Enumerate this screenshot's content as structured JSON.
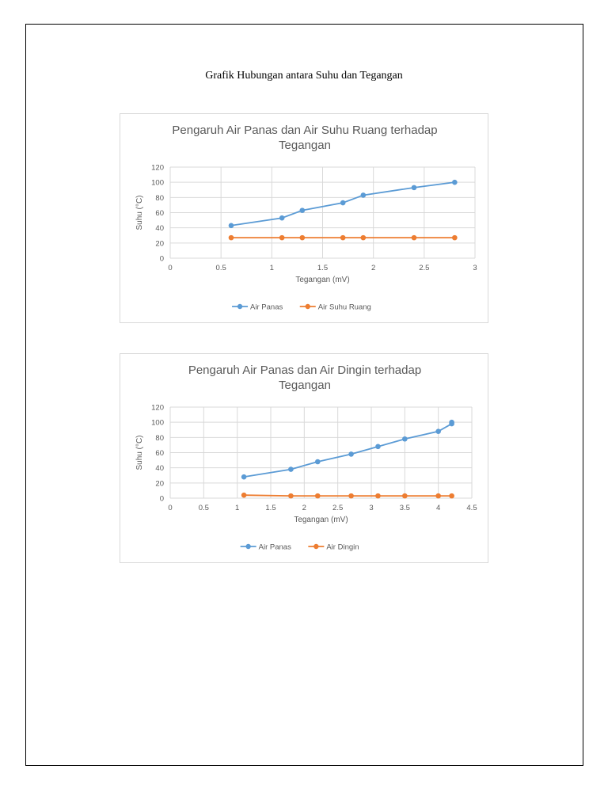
{
  "document": {
    "heading": "Grafik Hubungan antara Suhu dan Tegangan"
  },
  "chart_data": [
    {
      "type": "line",
      "title_lines": [
        "Pengaruh Air Panas dan Air Suhu Ruang terhadap",
        "Tegangan"
      ],
      "xlabel": "Tegangan (mV)",
      "ylabel": "Suhu (°C)",
      "xlim": [
        0,
        3
      ],
      "ylim": [
        0,
        120
      ],
      "x_ticks": [
        0,
        0.5,
        1,
        1.5,
        2,
        2.5,
        3
      ],
      "y_ticks": [
        0,
        20,
        40,
        60,
        80,
        100,
        120
      ],
      "grid": true,
      "legend_position": "bottom",
      "series": [
        {
          "name": "Air Panas",
          "color": "#5b9bd5",
          "x": [
            0.6,
            1.1,
            1.3,
            1.7,
            1.9,
            2.4,
            2.8
          ],
          "y": [
            43,
            53,
            63,
            73,
            83,
            93,
            100
          ]
        },
        {
          "name": "Air Suhu Ruang",
          "color": "#ed7d31",
          "x": [
            0.6,
            1.1,
            1.3,
            1.7,
            1.9,
            2.4,
            2.8
          ],
          "y": [
            27,
            27,
            27,
            27,
            27,
            27,
            27
          ]
        }
      ]
    },
    {
      "type": "line",
      "title_lines": [
        "Pengaruh Air Panas dan Air Dingin terhadap",
        "Tegangan"
      ],
      "xlabel": "Tegangan (mV)",
      "ylabel": "Suhu (°C)",
      "xlim": [
        0,
        4.5
      ],
      "ylim": [
        0,
        120
      ],
      "x_ticks": [
        0,
        0.5,
        1,
        1.5,
        2,
        2.5,
        3,
        3.5,
        4,
        4.5
      ],
      "y_ticks": [
        0,
        20,
        40,
        60,
        80,
        100,
        120
      ],
      "grid": true,
      "legend_position": "bottom",
      "series": [
        {
          "name": "Air Panas",
          "color": "#5b9bd5",
          "x": [
            1.1,
            1.8,
            2.2,
            2.7,
            3.1,
            3.5,
            4.0,
            4.2,
            4.2
          ],
          "y": [
            28,
            38,
            48,
            58,
            68,
            78,
            88,
            98,
            100
          ]
        },
        {
          "name": "Air Dingin",
          "color": "#ed7d31",
          "x": [
            1.1,
            1.8,
            2.2,
            2.7,
            3.1,
            3.5,
            4.0,
            4.2
          ],
          "y": [
            4,
            3,
            3,
            3,
            3,
            3,
            3,
            3
          ]
        }
      ]
    }
  ]
}
